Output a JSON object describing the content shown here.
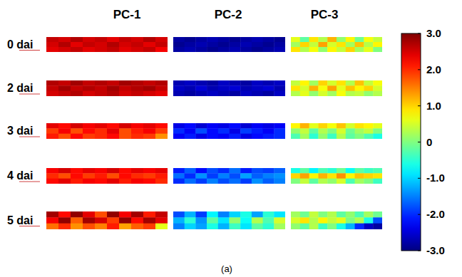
{
  "chart_data": {
    "type": "heatmap",
    "color": "jet",
    "caption": "(a)",
    "columns": [
      "PC-1",
      "PC-2",
      "PC-3"
    ],
    "rows": [
      "0 dai",
      "2 dai",
      "3 dai",
      "4 dai",
      "5 dai"
    ],
    "cells": [
      [
        [
          [
            2.6,
            2.5,
            2.7,
            2.5,
            2.6,
            2.4,
            2.6,
            2.5,
            2.7,
            2.5
          ],
          [
            2.5,
            2.7,
            2.4,
            2.6,
            2.5,
            2.7,
            2.5,
            2.6,
            2.4,
            2.6
          ],
          [
            2.4,
            2.5,
            2.6,
            2.4,
            2.5,
            2.6,
            2.4,
            2.5,
            2.6,
            2.3
          ]
        ],
        [
          [
            -2.8,
            -2.9,
            -2.8,
            -2.7,
            -2.8,
            -2.9,
            -2.8,
            -2.7,
            -2.8,
            -2.9
          ],
          [
            -2.9,
            -2.8,
            -2.7,
            -2.8,
            -2.9,
            -2.8,
            -2.7,
            -2.8,
            -2.9,
            -2.8
          ],
          [
            -2.8,
            -2.7,
            -2.8,
            -2.9,
            -2.8,
            -2.7,
            -2.8,
            -2.9,
            -2.8,
            -2.7
          ]
        ],
        [
          [
            0.6,
            -0.2,
            0.9,
            0.3,
            1.2,
            0.1,
            0.8,
            -0.1,
            0.7,
            0.4
          ],
          [
            0.2,
            1.0,
            0.4,
            1.3,
            0.5,
            0.9,
            0.2,
            1.1,
            0.3,
            0.8
          ],
          [
            0.9,
            0.3,
            0.7,
            0.1,
            0.8,
            0.4,
            1.0,
            0.2,
            0.6,
            0.0
          ]
        ]
      ],
      [
        [
          [
            2.7,
            2.6,
            2.8,
            2.6,
            2.7,
            2.6,
            2.8,
            2.7,
            2.6,
            2.7
          ],
          [
            2.6,
            2.8,
            2.6,
            2.7,
            2.6,
            2.8,
            2.6,
            2.7,
            2.8,
            2.6
          ],
          [
            2.5,
            2.6,
            2.7,
            2.5,
            2.6,
            2.7,
            2.5,
            2.6,
            2.5,
            2.4
          ]
        ],
        [
          [
            -2.7,
            -2.6,
            -2.7,
            -2.8,
            -2.6,
            -2.7,
            -2.8,
            -2.6,
            -2.7,
            -2.6
          ],
          [
            -2.6,
            -2.7,
            -2.5,
            -2.7,
            -2.6,
            -2.5,
            -2.7,
            -2.6,
            -2.5,
            -2.7
          ],
          [
            -2.7,
            -2.8,
            -2.7,
            -2.6,
            -2.7,
            -2.8,
            -2.6,
            -2.7,
            -2.8,
            -2.6
          ]
        ],
        [
          [
            0.4,
            0.8,
            0.2,
            1.0,
            0.5,
            0.9,
            0.3,
            1.1,
            0.4,
            0.7
          ],
          [
            0.9,
            0.5,
            1.2,
            0.7,
            1.3,
            0.6,
            1.1,
            0.8,
            1.0,
            0.5
          ],
          [
            0.3,
            0.6,
            0.1,
            0.5,
            0.2,
            0.7,
            0.3,
            0.4,
            0.1,
            0.3
          ]
        ]
      ],
      [
        [
          [
            2.4,
            2.2,
            2.5,
            2.3,
            2.4,
            2.2,
            2.5,
            2.3,
            2.4,
            2.2
          ],
          [
            1.9,
            2.3,
            1.8,
            2.2,
            2.0,
            2.4,
            1.8,
            2.1,
            2.3,
            1.9
          ],
          [
            2.1,
            1.8,
            2.2,
            1.9,
            2.0,
            2.2,
            1.8,
            2.0,
            1.9,
            1.4
          ]
        ],
        [
          [
            -2.4,
            -2.2,
            -2.5,
            -2.3,
            -2.4,
            -2.2,
            -2.5,
            -2.3,
            -2.4,
            -2.3
          ],
          [
            -2.0,
            -2.3,
            -1.8,
            -2.2,
            -2.0,
            -2.4,
            -1.9,
            -2.1,
            -2.3,
            -2.0
          ],
          [
            -2.3,
            -2.1,
            -2.4,
            -2.2,
            -2.3,
            -2.1,
            -2.4,
            -2.2,
            -2.1,
            -2.0
          ]
        ],
        [
          [
            0.8,
            1.2,
            0.6,
            1.0,
            0.7,
            1.1,
            0.5,
            0.9,
            0.8,
            0.6
          ],
          [
            0.1,
            0.4,
            -0.2,
            0.3,
            0.0,
            0.5,
            -0.1,
            0.2,
            0.4,
            0.0
          ],
          [
            -0.3,
            0.2,
            -0.5,
            0.1,
            -0.4,
            0.3,
            -0.2,
            0.0,
            -0.3,
            -0.6
          ]
        ]
      ],
      [
        [
          [
            2.3,
            2.5,
            2.2,
            2.4,
            2.3,
            2.5,
            2.2,
            2.4,
            2.3,
            2.4
          ],
          [
            2.0,
            1.8,
            2.2,
            1.9,
            2.1,
            1.8,
            2.2,
            2.0,
            1.9,
            2.1
          ],
          [
            2.2,
            2.4,
            2.1,
            2.3,
            2.2,
            2.4,
            2.1,
            2.3,
            2.2,
            2.0
          ]
        ],
        [
          [
            -2.1,
            -1.7,
            -2.2,
            -1.8,
            -2.0,
            -1.6,
            -2.1,
            -1.8,
            -1.9,
            -1.7
          ],
          [
            -1.6,
            -2.0,
            -1.4,
            -1.9,
            -1.5,
            -1.8,
            -1.3,
            -1.7,
            -1.5,
            -1.4
          ],
          [
            -2.0,
            -1.6,
            -1.9,
            -1.5,
            -1.8,
            -1.6,
            -1.9,
            -1.4,
            -1.7,
            -1.5
          ]
        ],
        [
          [
            -0.6,
            -0.2,
            -0.8,
            -0.3,
            -0.5,
            -0.1,
            -0.7,
            -0.2,
            -0.4,
            -0.3
          ],
          [
            1.0,
            1.3,
            0.8,
            1.2,
            0.9,
            1.4,
            0.8,
            1.1,
            1.0,
            0.9
          ],
          [
            0.0,
            0.4,
            -0.2,
            0.3,
            0.1,
            0.5,
            -0.3,
            0.2,
            0.0,
            -0.4
          ]
        ]
      ],
      [
        [
          [
            2.8,
            2.2,
            2.9,
            2.4,
            1.8,
            2.9,
            2.3,
            2.8,
            2.1,
            2.6
          ],
          [
            2.3,
            2.9,
            1.7,
            2.8,
            2.5,
            1.9,
            2.9,
            2.2,
            2.8,
            2.4
          ],
          [
            1.6,
            2.0,
            1.4,
            1.8,
            1.5,
            2.1,
            1.3,
            1.7,
            1.9,
            0.6
          ]
        ],
        [
          [
            -1.8,
            -1.2,
            -1.9,
            -0.8,
            -1.5,
            -1.0,
            -0.6,
            -1.3,
            -0.5,
            -0.9
          ],
          [
            -1.2,
            -0.5,
            -1.4,
            -0.2,
            -0.9,
            0.1,
            -0.7,
            0.3,
            -0.3,
            0.5
          ],
          [
            -1.5,
            -1.0,
            -1.3,
            -0.6,
            -1.2,
            -0.4,
            -0.9,
            -0.2,
            -0.5,
            0.2
          ]
        ],
        [
          [
            0.2,
            -0.1,
            0.4,
            0.0,
            0.3,
            -0.2,
            0.1,
            -0.3,
            0.2,
            -0.1
          ],
          [
            0.5,
            0.9,
            0.3,
            0.8,
            0.4,
            0.6,
            0.0,
            0.3,
            -0.6,
            -1.8
          ],
          [
            0.1,
            -0.2,
            0.3,
            -0.4,
            0.0,
            -0.6,
            -1.2,
            -2.0,
            -2.6,
            -2.8
          ]
        ]
      ]
    ],
    "colorbar": {
      "range": [
        -3,
        3
      ],
      "ticks": [
        {
          "value": 3,
          "label": "3.0"
        },
        {
          "value": 2,
          "label": "2.0"
        },
        {
          "value": 1,
          "label": "1.0"
        },
        0,
        {
          "value": -1,
          "label": "-1.0"
        },
        {
          "value": -2,
          "label": "-2.0"
        },
        {
          "value": -3,
          "label": "-3.0"
        }
      ]
    }
  }
}
